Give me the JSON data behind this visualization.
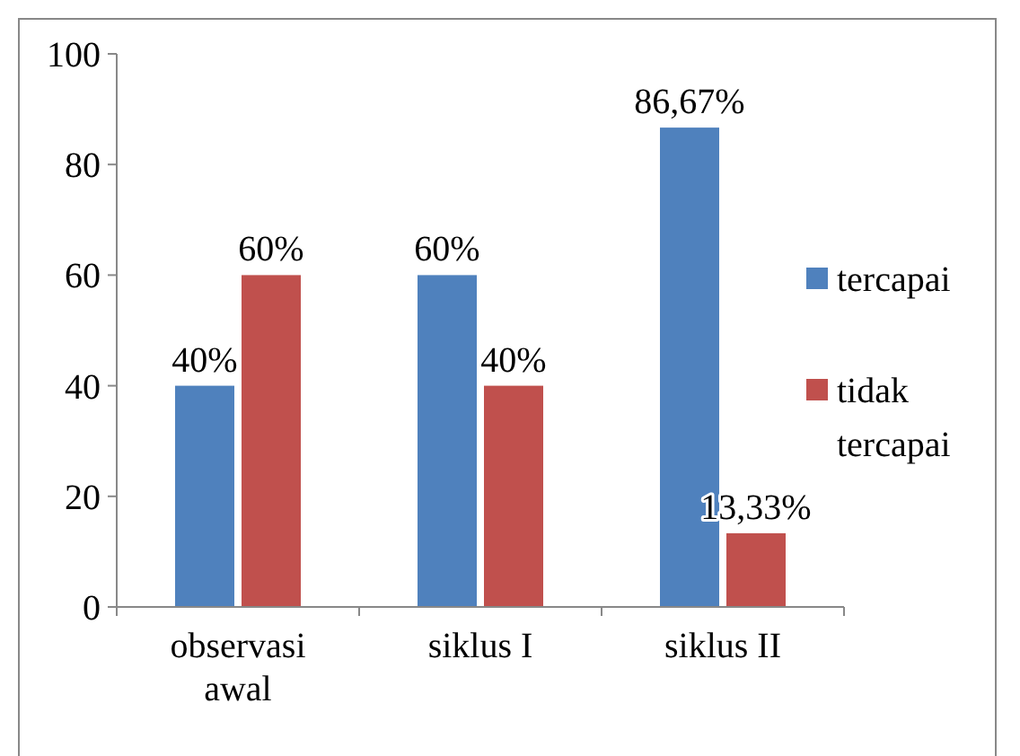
{
  "chart_data": {
    "type": "bar",
    "categories": [
      "observasi awal",
      "siklus I",
      "siklus II"
    ],
    "series": [
      {
        "name": "tercapai",
        "color": "#4f81bd",
        "values": [
          40,
          60,
          86.67
        ],
        "value_labels": [
          "40%",
          "60%",
          "86,67%"
        ]
      },
      {
        "name": "tidak tercapai",
        "color": "#c0504d",
        "values": [
          60,
          40,
          13.33
        ],
        "value_labels": [
          "60%",
          "40%",
          "13,33%"
        ]
      }
    ],
    "ylim": [
      0,
      100
    ],
    "yticks": [
      0,
      20,
      40,
      60,
      80,
      100
    ],
    "grid": false,
    "legend": "right"
  }
}
